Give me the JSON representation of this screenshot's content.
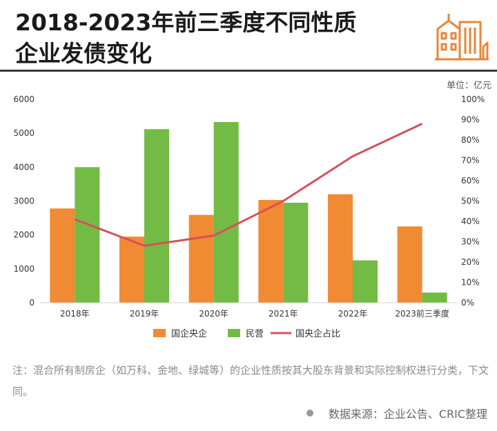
{
  "title": {
    "line1": "2018-2023年前三季度不同性质",
    "line2": "企业发债变化"
  },
  "unit_label": "单位：亿元",
  "note": "注：混合所有制房企（如万科、金地、绿城等）的企业性质按其大股东背景和实际控制权进行分类，下文同。",
  "source": "数据来源：企业公告、CRIC整理",
  "logo_icon": "buildings-icon",
  "colors": {
    "orange": "#F08A33",
    "green": "#72BB44",
    "line": "#D6505C"
  },
  "chart_data": {
    "type": "bar",
    "categories": [
      "2018年",
      "2019年",
      "2020年",
      "2021年",
      "2022年",
      "2023前三季度"
    ],
    "series": [
      {
        "name": "国企央企",
        "type": "bar",
        "axis": "left",
        "values": [
          2780,
          1950,
          2590,
          3030,
          3200,
          2250
        ]
      },
      {
        "name": "民营",
        "type": "bar",
        "axis": "left",
        "values": [
          4000,
          5120,
          5330,
          2950,
          1250,
          300
        ]
      },
      {
        "name": "国央企占比",
        "type": "line",
        "axis": "right",
        "values": [
          41,
          28,
          33,
          50,
          72,
          88
        ]
      }
    ],
    "yleft": {
      "min": 0,
      "max": 6000,
      "ticks": [
        "0",
        "1000",
        "2000",
        "3000",
        "4000",
        "5000",
        "6000"
      ]
    },
    "yright": {
      "min": 0,
      "max": 100,
      "ticks": [
        "0%",
        "10%",
        "20%",
        "30%",
        "40%",
        "50%",
        "60%",
        "70%",
        "80%",
        "90%",
        "100%"
      ]
    },
    "legend_position": "bottom",
    "grid": false
  }
}
